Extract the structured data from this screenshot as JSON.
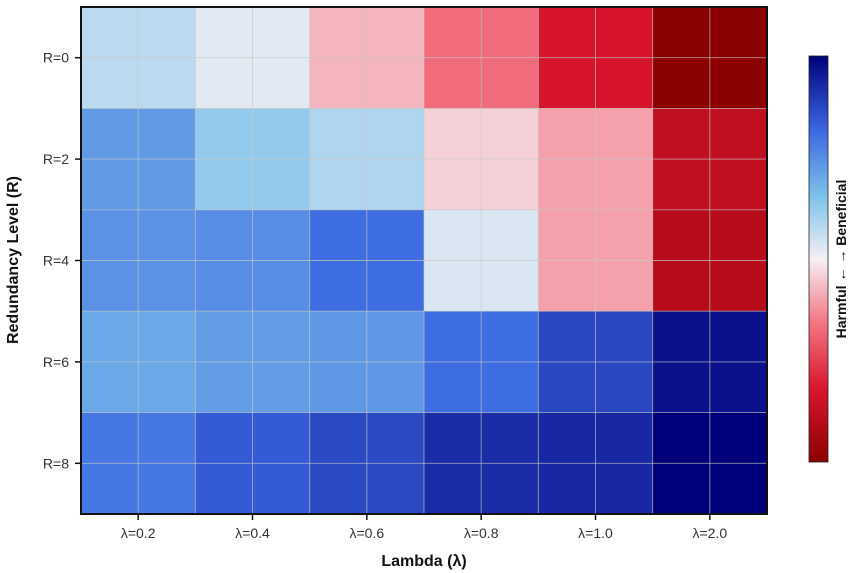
{
  "chart_data": {
    "type": "heatmap",
    "xlabel": "Lambda (λ)",
    "ylabel": "Redundancy Level (R)",
    "x_categories": [
      "λ=0.2",
      "λ=0.4",
      "λ=0.6",
      "λ=0.8",
      "λ=1.0",
      "λ=2.0"
    ],
    "y_categories": [
      "R=0",
      "R=2",
      "R=4",
      "R=6",
      "R=8"
    ],
    "values": [
      [
        0.15,
        0.05,
        -0.15,
        -0.35,
        -0.65,
        -1.0
      ],
      [
        0.45,
        0.25,
        0.18,
        -0.08,
        -0.2,
        -0.75
      ],
      [
        0.48,
        0.5,
        0.62,
        0.07,
        -0.2,
        -0.8
      ],
      [
        0.4,
        0.44,
        0.46,
        0.62,
        0.75,
        0.94
      ],
      [
        0.58,
        0.68,
        0.74,
        0.84,
        0.86,
        1.0
      ]
    ],
    "colorbar": {
      "label": "Harmful ← → Beneficial",
      "low_color": "#8b0000",
      "mid_color": "#f7f7f7",
      "high_color": "#00007a"
    },
    "grid": true
  }
}
